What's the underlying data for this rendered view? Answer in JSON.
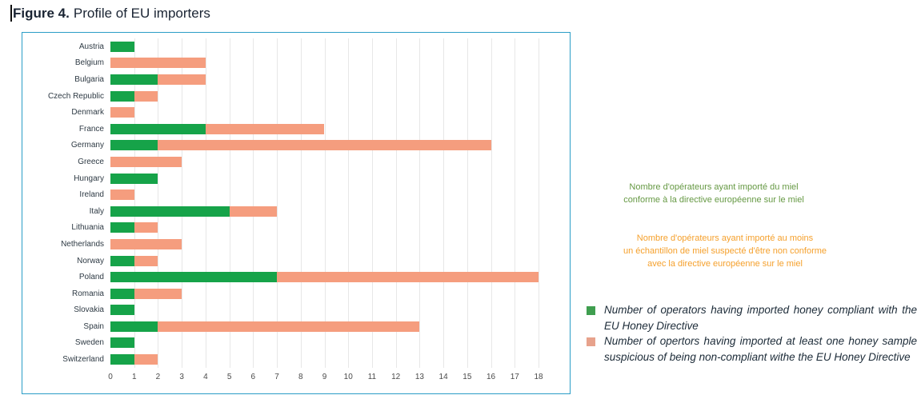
{
  "figure": {
    "label": "Figure 4.",
    "title": "Profile of EU importers"
  },
  "chart_data": {
    "type": "bar",
    "orientation": "horizontal",
    "stacked": true,
    "title": "Profile of EU importers",
    "categories": [
      "Austria",
      "Belgium",
      "Bulgaria",
      "Czech Republic",
      "Denmark",
      "France",
      "Germany",
      "Greece",
      "Hungary",
      "Ireland",
      "Italy",
      "Lithuania",
      "Netherlands",
      "Norway",
      "Poland",
      "Romania",
      "Slovakia",
      "Spain",
      "Sweden",
      "Switzerland"
    ],
    "series": [
      {
        "name": "Number of operators having imported honey compliant with the EU Honey Directive",
        "color": "#16a349",
        "values": [
          1,
          0,
          2,
          1,
          0,
          4,
          2,
          0,
          2,
          0,
          5,
          1,
          0,
          1,
          7,
          1,
          1,
          2,
          1,
          1
        ]
      },
      {
        "name": "Number of opertors having imported at least one honey sample suspicious of being non-compliant withe the EU Honey Directive",
        "color": "#f59d7e",
        "values": [
          0,
          4,
          2,
          1,
          1,
          5,
          14,
          3,
          0,
          1,
          2,
          1,
          3,
          1,
          11,
          2,
          0,
          11,
          0,
          1
        ]
      }
    ],
    "xlim": [
      0,
      18
    ],
    "xticks": [
      0,
      1,
      2,
      3,
      4,
      5,
      6,
      7,
      8,
      9,
      10,
      11,
      12,
      13,
      14,
      15,
      16,
      17,
      18
    ],
    "xlabel": "",
    "ylabel": "",
    "grid": true,
    "legend_position": "right"
  },
  "legend_fr": {
    "compliant_text": "Nombre d'opérateurs ayant importé du miel\nconforme à la directive européenne sur le miel",
    "compliant_color": "#669944",
    "suspicious_text": "Nombre d'opérateurs ayant importé au moins\nun échantillon de miel suspecté d'être non conforme\navec la directive européenne sur le miel",
    "suspicious_color": "#f5a02c"
  },
  "legend_en": {
    "items": [
      {
        "swatch_color": "#3f9e4f",
        "label": "Number of operators having imported honey compliant with the EU Honey Directive"
      },
      {
        "swatch_color": "#e7a28c",
        "label": "Number of opertors having imported at least one honey sample suspicious of being non-compliant withe the EU Honey Directive"
      }
    ]
  },
  "colors": {
    "chart_border": "#2b9dc7",
    "gridline": "#e7e7e7",
    "title_text": "#1a2433",
    "bar_compliant": "#16a349",
    "bar_suspicious": "#f59d7e"
  }
}
